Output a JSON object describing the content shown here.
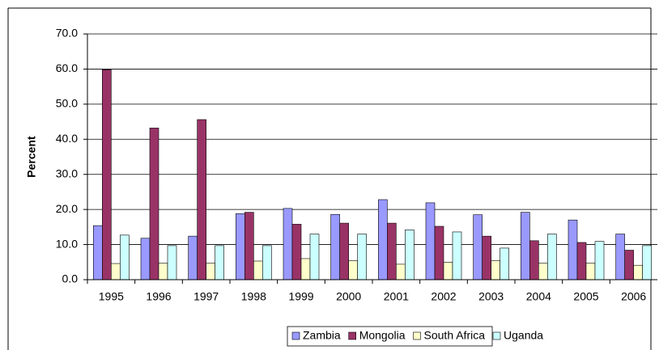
{
  "chart_data": {
    "type": "bar",
    "y_label": "Percent",
    "categories": [
      "1995",
      "1996",
      "1997",
      "1998",
      "1999",
      "2000",
      "2001",
      "2002",
      "2003",
      "2004",
      "2005",
      "2006"
    ],
    "series": [
      {
        "name": "Zambia",
        "color": "#9999ff",
        "values": [
          15.4,
          11.8,
          12.4,
          18.8,
          20.3,
          18.6,
          22.8,
          21.9,
          18.5,
          19.2,
          17.0,
          13.0
        ]
      },
      {
        "name": "Mongolia",
        "color": "#993366",
        "values": [
          59.8,
          43.2,
          45.6,
          19.2,
          15.8,
          16.1,
          16.1,
          15.2,
          12.4,
          11.1,
          10.6,
          8.4
        ]
      },
      {
        "name": "South Africa",
        "color": "#ffffcc",
        "values": [
          4.6,
          4.7,
          4.7,
          5.3,
          6.0,
          5.4,
          4.4,
          5.0,
          5.4,
          4.7,
          4.7,
          4.1
        ]
      },
      {
        "name": "Uganda",
        "color": "#ccffff",
        "values": [
          12.7,
          9.7,
          9.7,
          9.7,
          13.0,
          13.0,
          14.2,
          13.6,
          9.0,
          13.0,
          10.9,
          9.7
        ]
      }
    ],
    "ylim": [
      0,
      70
    ],
    "yticks": [
      {
        "value": 0,
        "label": "0.0"
      },
      {
        "value": 10,
        "label": "10.0"
      },
      {
        "value": 20,
        "label": "20.0"
      },
      {
        "value": 30,
        "label": "30.0"
      },
      {
        "value": 40,
        "label": "40.0"
      },
      {
        "value": 50,
        "label": "50.0"
      },
      {
        "value": 60,
        "label": "60.0"
      },
      {
        "value": 70,
        "label": "70.0"
      }
    ],
    "grid": true,
    "legend": "bottom"
  }
}
